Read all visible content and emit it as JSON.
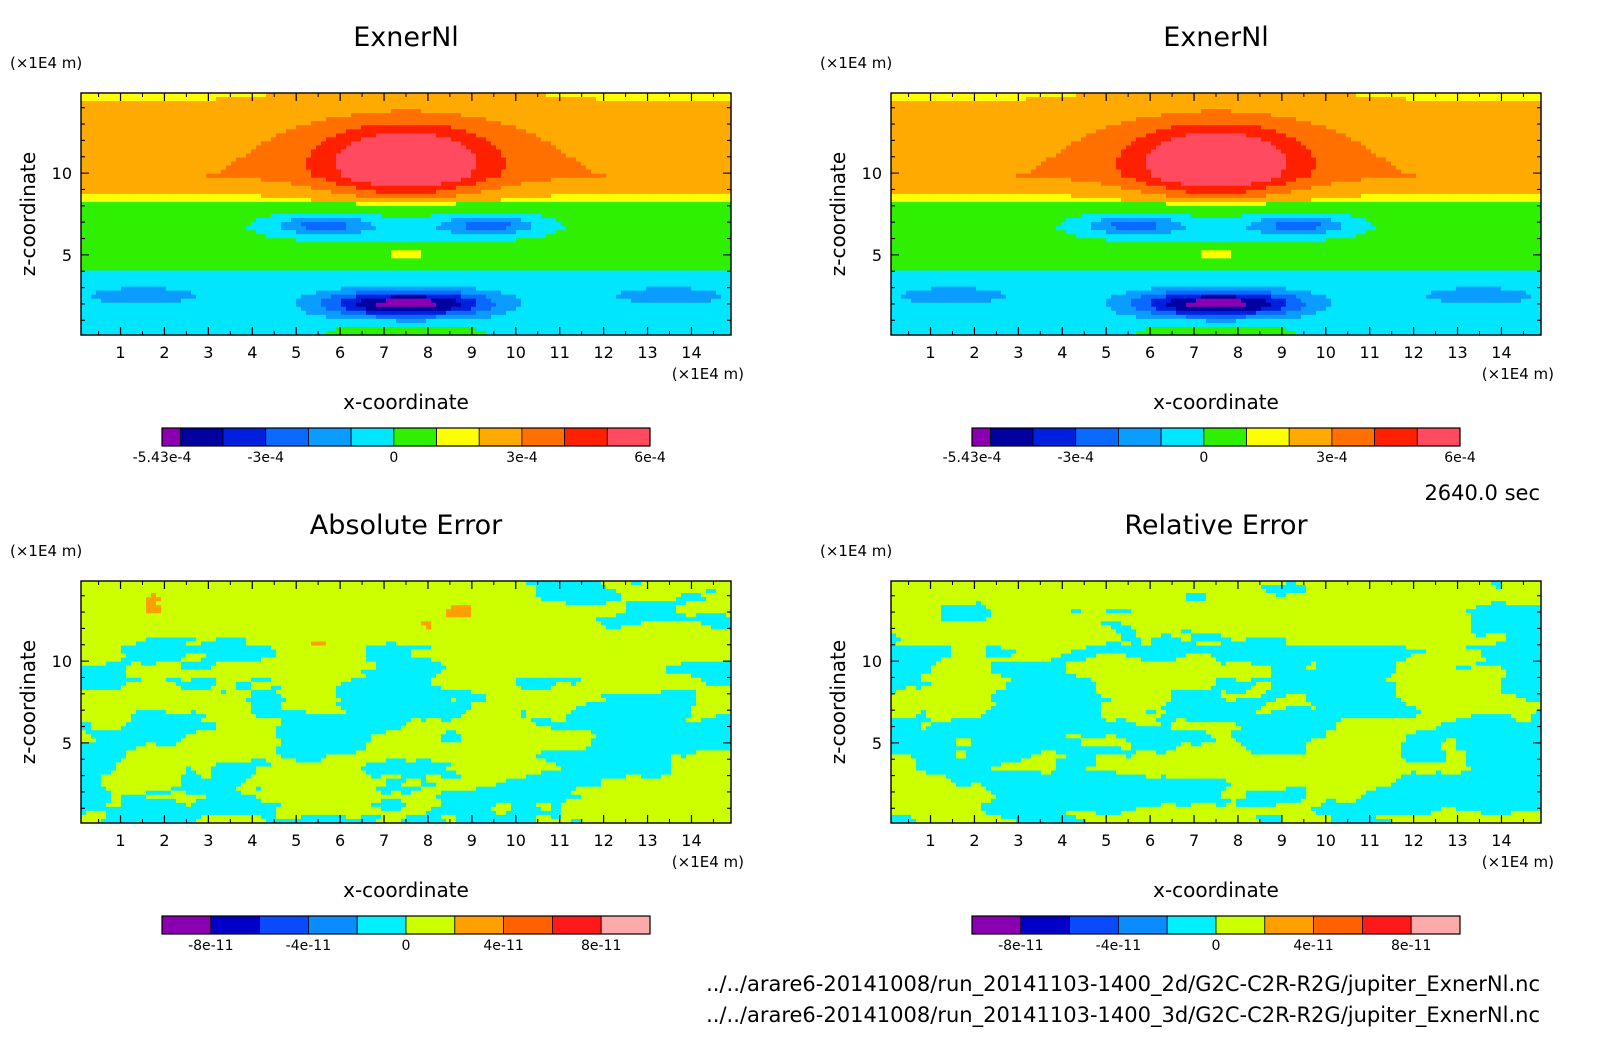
{
  "figure": {
    "time_label": "2640.0 sec",
    "files": [
      "../../arare6-20141008/run_20141103-1400_2d/G2C-C2R-R2G/jupiter_ExnerNl.nc",
      "../../arare6-20141008/run_20141103-1400_3d/G2C-C2R-R2G/jupiter_ExnerNl.nc"
    ]
  },
  "chart_data": [
    {
      "type": "heatmap",
      "title": "ExnerNl",
      "xlabel": "x-coordinate",
      "ylabel": "z-coordinate",
      "x_unit": "(×1E4 m)",
      "y_unit": "(×1E4 m)",
      "xlim": [
        0.1,
        14.9
      ],
      "ylim": [
        0.1,
        14.9
      ],
      "xticks": [
        1,
        2,
        3,
        4,
        5,
        6,
        7,
        8,
        9,
        10,
        11,
        12,
        13,
        14
      ],
      "yticks": [
        5,
        10
      ],
      "field": "exner",
      "colorbar": {
        "min": -0.000543,
        "max": 0.0006,
        "levels": [
          -0.000543,
          -0.0005,
          -0.0004,
          -0.0003,
          -0.0002,
          -0.0001,
          0,
          0.0001,
          0.0002,
          0.0003,
          0.0004,
          0.0005,
          0.0006
        ],
        "colors": [
          "#8a00b0",
          "#0000a0",
          "#0020e0",
          "#0a6aff",
          "#0a9cff",
          "#00e6ff",
          "#2ef000",
          "#ffff00",
          "#ffaa00",
          "#ff7000",
          "#ff2000",
          "#ff4a60"
        ],
        "tick_values": [
          -0.000543,
          -0.0003,
          0,
          0.0003,
          0.0006
        ],
        "tick_labels": [
          "-5.43e-4",
          "-3e-4",
          "0",
          "3e-4",
          "6e-4"
        ]
      }
    },
    {
      "type": "heatmap",
      "title": "ExnerNl",
      "xlabel": "x-coordinate",
      "ylabel": "z-coordinate",
      "x_unit": "(×1E4 m)",
      "y_unit": "(×1E4 m)",
      "xlim": [
        0.1,
        14.9
      ],
      "ylim": [
        0.1,
        14.9
      ],
      "xticks": [
        1,
        2,
        3,
        4,
        5,
        6,
        7,
        8,
        9,
        10,
        11,
        12,
        13,
        14
      ],
      "yticks": [
        5,
        10
      ],
      "field": "exner",
      "colorbar": {
        "min": -0.000543,
        "max": 0.0006,
        "levels": [
          -0.000543,
          -0.0005,
          -0.0004,
          -0.0003,
          -0.0002,
          -0.0001,
          0,
          0.0001,
          0.0002,
          0.0003,
          0.0004,
          0.0005,
          0.0006
        ],
        "colors": [
          "#8a00b0",
          "#0000a0",
          "#0020e0",
          "#0a6aff",
          "#0a9cff",
          "#00e6ff",
          "#2ef000",
          "#ffff00",
          "#ffaa00",
          "#ff7000",
          "#ff2000",
          "#ff4a60"
        ],
        "tick_values": [
          -0.000543,
          -0.0003,
          0,
          0.0003,
          0.0006
        ],
        "tick_labels": [
          "-5.43e-4",
          "-3e-4",
          "0",
          "3e-4",
          "6e-4"
        ]
      }
    },
    {
      "type": "heatmap",
      "title": "Absolute Error",
      "xlabel": "x-coordinate",
      "ylabel": "z-coordinate",
      "x_unit": "(×1E4 m)",
      "y_unit": "(×1E4 m)",
      "xlim": [
        0.1,
        14.9
      ],
      "ylim": [
        0.1,
        14.9
      ],
      "xticks": [
        1,
        2,
        3,
        4,
        5,
        6,
        7,
        8,
        9,
        10,
        11,
        12,
        13,
        14
      ],
      "yticks": [
        5,
        10
      ],
      "field": "error",
      "seed": 11,
      "colorbar": {
        "min": -1e-10,
        "max": 1e-10,
        "levels": [
          -1e-10,
          -8e-11,
          -6e-11,
          -4e-11,
          -2e-11,
          0,
          2e-11,
          4e-11,
          6e-11,
          8e-11,
          1e-10
        ],
        "colors": [
          "#8a00b0",
          "#0000c8",
          "#0a4aff",
          "#0a8cff",
          "#00f0ff",
          "#ccff00",
          "#ffa000",
          "#ff6000",
          "#ff1a1a",
          "#ffaaaa"
        ],
        "tick_values": [
          -8e-11,
          -4e-11,
          0,
          4e-11,
          8e-11
        ],
        "tick_labels": [
          "-8e-11",
          "-4e-11",
          "0",
          "4e-11",
          "8e-11"
        ]
      }
    },
    {
      "type": "heatmap",
      "title": "Relative Error",
      "xlabel": "x-coordinate",
      "ylabel": "z-coordinate",
      "x_unit": "(×1E4 m)",
      "y_unit": "(×1E4 m)",
      "xlim": [
        0.1,
        14.9
      ],
      "ylim": [
        0.1,
        14.9
      ],
      "xticks": [
        1,
        2,
        3,
        4,
        5,
        6,
        7,
        8,
        9,
        10,
        11,
        12,
        13,
        14
      ],
      "yticks": [
        5,
        10
      ],
      "field": "error",
      "seed": 29,
      "colorbar": {
        "min": -1e-10,
        "max": 1e-10,
        "levels": [
          -1e-10,
          -8e-11,
          -6e-11,
          -4e-11,
          -2e-11,
          0,
          2e-11,
          4e-11,
          6e-11,
          8e-11,
          1e-10
        ],
        "colors": [
          "#8a00b0",
          "#0000c8",
          "#0a4aff",
          "#0a8cff",
          "#00f0ff",
          "#ccff00",
          "#ffa000",
          "#ff6000",
          "#ff1a1a",
          "#ffaaaa"
        ],
        "tick_values": [
          -8e-11,
          -4e-11,
          0,
          4e-11,
          8e-11
        ],
        "tick_labels": [
          "-8e-11",
          "-4e-11",
          "0",
          "4e-11",
          "8e-11"
        ]
      }
    }
  ]
}
